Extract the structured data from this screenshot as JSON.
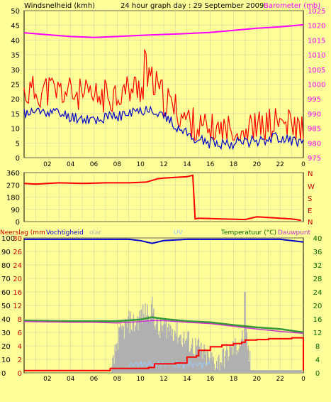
{
  "title": "24 hour graph day : 29 September 2009",
  "colors": {
    "background": "#ffff99",
    "wind_speed": "#ff0000",
    "wind_avg": "#0000cc",
    "barometer": "#ff00ff",
    "wind_dir": "#ff0000",
    "humidity": "#0000cc",
    "temperature": "#339933",
    "dewpoint": "#cc33cc",
    "rain": "#ff0000",
    "solar": "#b0b0b0",
    "uv": "#99ccff",
    "text_dark": "#000000",
    "text_green": "#006600"
  },
  "chart_data": [
    {
      "type": "line",
      "labels": {
        "left": "Windsnelheid (kmh)",
        "right": "Barometer (mb)"
      },
      "y_left": {
        "min": 0,
        "max": 50,
        "ticks": [
          "0",
          "5",
          "10",
          "15",
          "20",
          "25",
          "30",
          "35",
          "40",
          "45",
          "50"
        ]
      },
      "y_right": {
        "min": 975,
        "max": 1025,
        "ticks": [
          "975",
          "980",
          "985",
          "990",
          "995",
          "1000",
          "1005",
          "1010",
          "1015",
          "1020",
          "1025"
        ]
      },
      "x_ticks": [
        "02",
        "04",
        "06",
        "08",
        "10",
        "12",
        "14",
        "16",
        "18",
        "20",
        "22"
      ],
      "series": [
        {
          "key": "barometer",
          "axis": "right",
          "x": [
            0,
            2,
            4,
            6,
            8,
            10,
            12,
            14,
            16,
            18,
            20,
            22,
            24
          ],
          "y": [
            1017.5,
            1016.8,
            1016.2,
            1015.9,
            1016.2,
            1016.6,
            1016.9,
            1017.2,
            1017.6,
            1018.3,
            1019.0,
            1019.5,
            1020.2
          ]
        }
      ],
      "wind_gust_profile": {
        "hours": [
          0,
          2,
          4,
          6,
          8,
          10,
          11,
          12,
          14,
          15,
          16,
          18,
          20,
          22,
          24
        ],
        "values": [
          22,
          23,
          22,
          20,
          22,
          24,
          26,
          20,
          13,
          10,
          9,
          9,
          10,
          12,
          9
        ]
      },
      "wind_avg_profile": {
        "hours": [
          0,
          2,
          4,
          6,
          8,
          10,
          11,
          12,
          14,
          15,
          16,
          18,
          20,
          22,
          24
        ],
        "values": [
          15,
          16,
          14,
          13,
          14,
          16,
          17,
          14,
          8,
          6,
          5,
          5,
          6,
          7,
          5
        ]
      }
    },
    {
      "type": "line",
      "labels": {
        "right": [
          "N",
          "W",
          "S",
          "E",
          "N"
        ]
      },
      "y_left": {
        "min": 0,
        "max": 360,
        "ticks": [
          "0",
          "90",
          "180",
          "270",
          "360"
        ]
      },
      "series": [
        {
          "key": "wind_dir",
          "x": [
            0,
            1,
            3,
            5,
            7,
            9,
            10.5,
            11.5,
            12,
            13,
            14,
            14.5,
            14.7,
            15,
            17,
            19,
            20,
            21,
            23,
            23.8
          ],
          "y": [
            280,
            275,
            285,
            280,
            285,
            285,
            290,
            315,
            320,
            325,
            330,
            340,
            20,
            25,
            20,
            15,
            35,
            30,
            20,
            10
          ]
        }
      ]
    },
    {
      "type": "line",
      "labels": {
        "left": "Neerslag (mm",
        "left2": "Vochtigheid",
        "solar": "olar",
        "uv": "UV",
        "right": "Temperatuur (°C)",
        "right2": "Dauwpunt"
      },
      "y_left": {
        "min": 0,
        "max": 100,
        "ticks": [
          "0",
          "10",
          "20",
          "30",
          "40",
          "50",
          "60",
          "70",
          "80",
          "90",
          "100"
        ]
      },
      "y_inner": {
        "min": 0,
        "max": 30,
        "ticks": [
          "0",
          "2",
          "4",
          "6",
          "8",
          "12",
          "16",
          "20",
          "24",
          "26",
          "30"
        ]
      },
      "y_right": {
        "min": 0,
        "max": 40,
        "ticks": [
          "0",
          "4",
          "8",
          "12",
          "16",
          "20",
          "24",
          "28",
          "32",
          "36",
          "40"
        ]
      },
      "series": [
        {
          "key": "humidity",
          "x": [
            0,
            3,
            6,
            9,
            10,
            11,
            12,
            14,
            16,
            18,
            20,
            22,
            24
          ],
          "y": [
            99,
            99,
            99,
            99,
            98,
            96,
            98,
            99,
            99,
            99,
            99,
            99,
            97
          ]
        },
        {
          "key": "temperature",
          "x": [
            0,
            2,
            4,
            6,
            8,
            10,
            11,
            12,
            14,
            16,
            18,
            20,
            22,
            24
          ],
          "y": [
            15.5,
            15.4,
            15.3,
            15.3,
            15.3,
            15.8,
            16.5,
            16.0,
            15.3,
            15.0,
            14.2,
            13.5,
            13.0,
            12.0
          ]
        },
        {
          "key": "dewpoint",
          "x": [
            0,
            2,
            4,
            6,
            8,
            10,
            11,
            12,
            14,
            16,
            18,
            20,
            22,
            24
          ],
          "y": [
            15.2,
            15.1,
            15.0,
            15.0,
            14.8,
            15.2,
            15.5,
            15.5,
            15.0,
            14.6,
            13.8,
            13.0,
            12.3,
            11.7
          ]
        },
        {
          "key": "rain",
          "x": [
            0,
            7.2,
            7.4,
            10.5,
            10.7,
            11,
            11.2,
            11.4,
            13,
            14,
            14.8,
            15,
            16,
            17,
            18,
            18.7,
            19,
            20,
            21,
            23,
            23.9,
            24
          ],
          "y": [
            0.5,
            0.5,
            1.0,
            1.0,
            1.2,
            1.2,
            2.0,
            2.0,
            2.2,
            3.5,
            3.8,
            5.0,
            5.8,
            6.2,
            6.5,
            6.8,
            7.3,
            7.4,
            7.6,
            7.8,
            7.8,
            0.5
          ]
        },
        {
          "key": "solar",
          "x": [
            7.5,
            8,
            8.5,
            9,
            9.5,
            10,
            10.5,
            11,
            11.5,
            12,
            12.5,
            13,
            13.5,
            14,
            14.5,
            15,
            15.5,
            16,
            16.5,
            17,
            17.5,
            18,
            18.5,
            19,
            19.5
          ],
          "y": [
            0,
            25,
            32,
            38,
            36,
            42,
            45,
            48,
            30,
            35,
            33,
            31,
            26,
            24,
            20,
            18,
            12,
            10,
            8,
            10,
            15,
            18,
            22,
            30,
            0
          ]
        }
      ]
    }
  ]
}
